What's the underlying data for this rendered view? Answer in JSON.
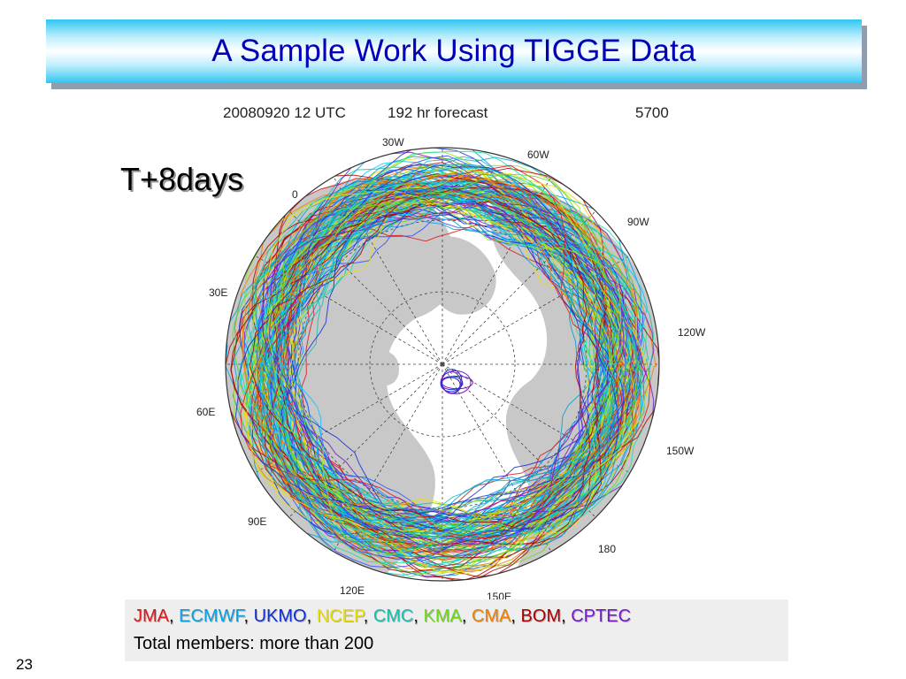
{
  "slide": {
    "title": "A Sample Work Using TIGGE Data",
    "page_number": "23",
    "badge": "T+8days"
  },
  "map": {
    "header": {
      "date": "20080920 12 UTC",
      "forecast": "192 hr forecast",
      "contour": "5700"
    },
    "longitude_labels": [
      "30W",
      "60W",
      "0",
      "90W",
      "30E",
      "120W",
      "60E",
      "150W",
      "90E",
      "180",
      "120E",
      "150E"
    ],
    "colors": {
      "land": "#c8c8c8",
      "ocean": "#ffffff",
      "graticule": "#444444"
    }
  },
  "legend": {
    "centers": [
      {
        "name": "JMA",
        "sep": ", ",
        "color": "#e01818"
      },
      {
        "name": "ECMWF",
        "sep": ", ",
        "color": "#0aa0e0"
      },
      {
        "name": "UKMO",
        "sep": ", ",
        "color": "#1030d0"
      },
      {
        "name": "NCEP",
        "sep": ", ",
        "color": "#e8e000"
      },
      {
        "name": "CMC",
        "sep": ", ",
        "color": "#18c0b0"
      },
      {
        "name": "KMA",
        "sep": ", ",
        "color": "#70d818"
      },
      {
        "name": "CMA",
        "sep": ", ",
        "color": "#f08000"
      },
      {
        "name": "BOM",
        "sep": ", ",
        "color": "#b00000"
      },
      {
        "name": "CPTEC",
        "sep": "",
        "color": "#7818c8"
      }
    ],
    "total_text": "Total members: more than 200"
  }
}
